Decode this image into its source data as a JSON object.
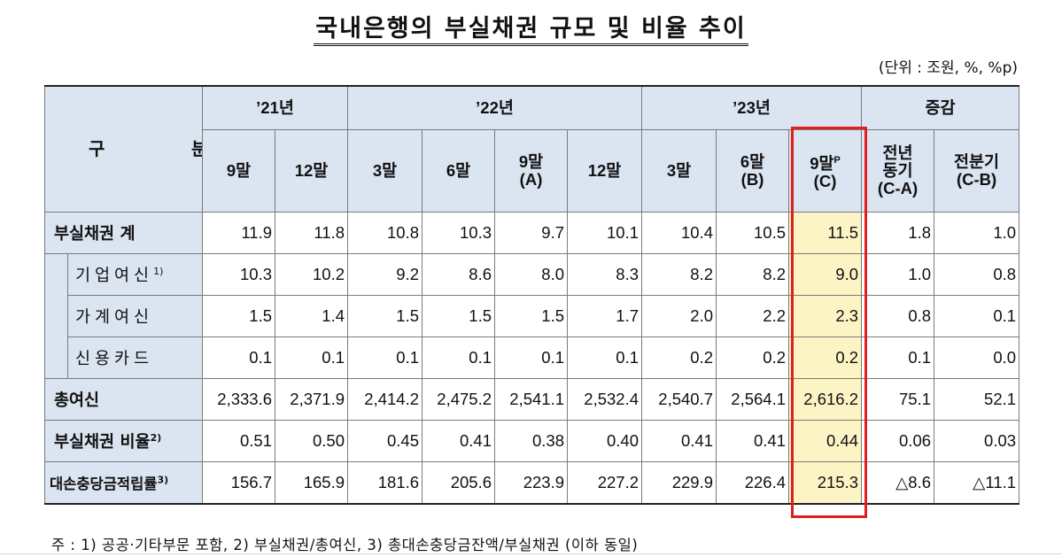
{
  "title": "국내은행의 부실채권 규모 및 비율 추이",
  "unit": "(단위 : 조원, %, %p)",
  "header": {
    "gubun": "구 분",
    "groups": [
      "’21년",
      "’22년",
      "’23년",
      "증감"
    ],
    "cols": [
      {
        "l1": "9말",
        "l2": ""
      },
      {
        "l1": "12말",
        "l2": ""
      },
      {
        "l1": "3말",
        "l2": ""
      },
      {
        "l1": "6말",
        "l2": ""
      },
      {
        "l1": "9말",
        "l2": "(A)"
      },
      {
        "l1": "12말",
        "l2": ""
      },
      {
        "l1": "3말",
        "l2": ""
      },
      {
        "l1": "6말",
        "l2": "(B)"
      },
      {
        "l1": "9말",
        "sup": "P",
        "l2": "(C)"
      },
      {
        "l1": "전년",
        "l2": "동기",
        "l3": "(C-A)"
      },
      {
        "l1": "전분기",
        "l2": "(C-B)"
      }
    ]
  },
  "rows": [
    {
      "label": "부실채권 계",
      "values": [
        "11.9",
        "11.8",
        "10.8",
        "10.3",
        "9.7",
        "10.1",
        "10.4",
        "10.5",
        "11.5",
        "1.8",
        "1.0"
      ]
    },
    {
      "label": "기업여신",
      "sup": "1)",
      "values": [
        "10.3",
        "10.2",
        "9.2",
        "8.6",
        "8.0",
        "8.3",
        "8.2",
        "8.2",
        "9.0",
        "1.0",
        "0.8"
      ]
    },
    {
      "label": "가계여신",
      "values": [
        "1.5",
        "1.4",
        "1.5",
        "1.5",
        "1.5",
        "1.7",
        "2.0",
        "2.2",
        "2.3",
        "0.8",
        "0.1"
      ]
    },
    {
      "label": "신용카드",
      "values": [
        "0.1",
        "0.1",
        "0.1",
        "0.1",
        "0.1",
        "0.1",
        "0.2",
        "0.2",
        "0.2",
        "0.1",
        "0.0"
      ]
    },
    {
      "label": "총여신",
      "values": [
        "2,333.6",
        "2,371.9",
        "2,414.2",
        "2,475.2",
        "2,541.1",
        "2,532.4",
        "2,540.7",
        "2,564.1",
        "2,616.2",
        "75.1",
        "52.1"
      ]
    },
    {
      "label": "부실채권 비율",
      "sup": "2)",
      "values": [
        "0.51",
        "0.50",
        "0.45",
        "0.41",
        "0.38",
        "0.40",
        "0.41",
        "0.41",
        "0.44",
        "0.06",
        "0.03"
      ]
    },
    {
      "label": "대손충당금적립률",
      "sup": "3)",
      "values": [
        "156.7",
        "165.9",
        "181.6",
        "205.6",
        "223.9",
        "227.2",
        "229.9",
        "226.4",
        "215.3",
        "△8.6",
        "△11.1"
      ]
    }
  ],
  "note": "주 : 1) 공공·기타부문 포함, 2) 부실채권/총여신, 3) 총대손충당금잔액/부실채권 (이하 동일)",
  "colors": {
    "header_bg": "#dbe4f1",
    "highlight_bg": "#fdf4c5",
    "highlight_border": "#e21d1d"
  }
}
